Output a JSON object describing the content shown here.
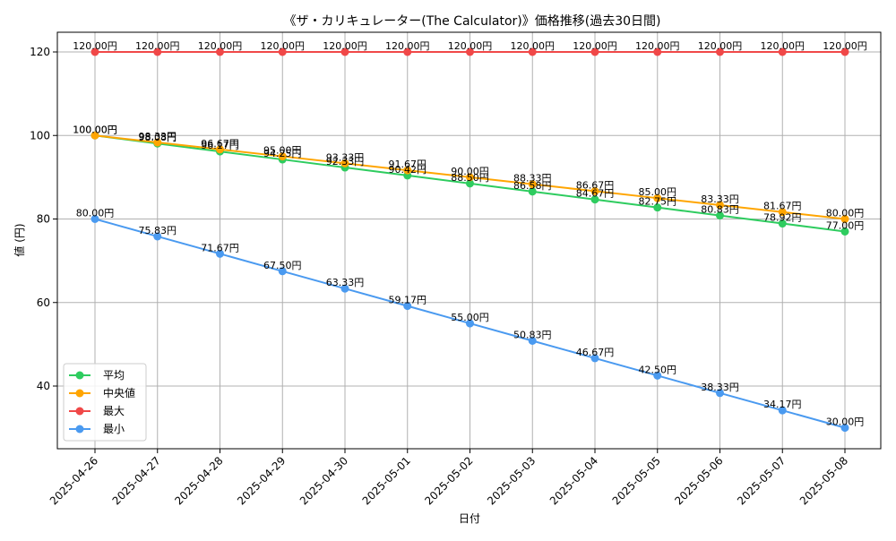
{
  "chart_data": {
    "type": "line",
    "title": "《ザ・カリキュレーター(The Calculator)》価格推移(過去30日間)",
    "xlabel": "日付",
    "ylabel": "値 (円)",
    "x": [
      "2025-04-26",
      "2025-04-27",
      "2025-04-28",
      "2025-04-29",
      "2025-04-30",
      "2025-05-01",
      "2025-05-02",
      "2025-05-03",
      "2025-05-04",
      "2025-05-05",
      "2025-05-06",
      "2025-05-07",
      "2025-05-08"
    ],
    "yticks": [
      40,
      60,
      80,
      100,
      120
    ],
    "ylim": [
      25,
      125
    ],
    "grid": true,
    "legend_position": "lower-left",
    "value_suffix": "円",
    "series": [
      {
        "name": "平均",
        "color": "#2ecc5f",
        "values": [
          100.0,
          98.08,
          96.17,
          94.25,
          92.33,
          90.42,
          88.5,
          86.58,
          84.67,
          82.75,
          80.83,
          78.92,
          77.0
        ],
        "labels": [
          "100.00円",
          "98.08円",
          "96.17円",
          "94.25円",
          "92.33円",
          "90.42円",
          "88.50円",
          "86.58円",
          "84.67円",
          "82.75円",
          "80.83円",
          "78.92円",
          "77.00円"
        ]
      },
      {
        "name": "中央値",
        "color": "#ffa500",
        "values": [
          100.0,
          98.33,
          96.67,
          95.0,
          93.33,
          91.67,
          90.0,
          88.33,
          86.67,
          85.0,
          83.33,
          81.67,
          80.0
        ],
        "labels": [
          "100.00円",
          "98.33円",
          "96.67円",
          "95.00円",
          "93.33円",
          "91.67円",
          "90.00円",
          "88.33円",
          "86.67円",
          "85.00円",
          "83.33円",
          "81.67円",
          "80.00円"
        ]
      },
      {
        "name": "最大",
        "color": "#f04848",
        "values": [
          120,
          120,
          120,
          120,
          120,
          120,
          120,
          120,
          120,
          120,
          120,
          120,
          120
        ],
        "labels": [
          "120.00円",
          "120.00円",
          "120.00円",
          "120.00円",
          "120.00円",
          "120.00円",
          "120.00円",
          "120.00円",
          "120.00円",
          "120.00円",
          "120.00円",
          "120.00円",
          "120.00円"
        ]
      },
      {
        "name": "最小",
        "color": "#4a9af0",
        "values": [
          80.0,
          75.83,
          71.67,
          67.5,
          63.33,
          59.17,
          55.0,
          50.83,
          46.67,
          42.5,
          38.33,
          34.17,
          30.0
        ],
        "labels": [
          "80.00円",
          "75.83円",
          "71.67円",
          "67.50円",
          "63.33円",
          "59.17円",
          "55.00円",
          "50.83円",
          "46.67円",
          "42.50円",
          "38.33円",
          "34.17円",
          "30.00円"
        ]
      }
    ]
  }
}
